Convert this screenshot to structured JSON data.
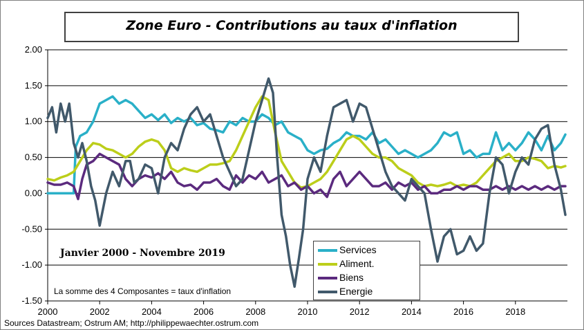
{
  "title": "Zone Euro - Contributions au taux d'inflation",
  "period": "Janvier 2000 - Novembre 2019",
  "note": "La somme des 4 Composantes = taux d'inflation",
  "source": "Sources Datastream; Ostrum AM; http://philippewaechter.ostrum.com",
  "chart_data": {
    "type": "line",
    "title": "Zone Euro - Contributions au taux d'inflation",
    "xlim": [
      2000,
      2020
    ],
    "ylim": [
      -1.5,
      2.0
    ],
    "x_ticks": [
      "2000",
      "2002",
      "2004",
      "2006",
      "2008",
      "2010",
      "2012",
      "2014",
      "2016",
      "2018"
    ],
    "y_ticks": [
      "2.00",
      "1.50",
      "1.00",
      "0.50",
      "0.00",
      "-0.50",
      "-1.00",
      "-1.50"
    ],
    "grid": "horizontal",
    "legend_position": "bottom-center",
    "series": [
      {
        "name": "Services",
        "color": "#2ab0c8",
        "x": [
          2000.0,
          2000.5,
          2001.0,
          2001.08,
          2001.25,
          2001.5,
          2001.75,
          2002.0,
          2002.25,
          2002.5,
          2002.75,
          2003.0,
          2003.25,
          2003.5,
          2003.75,
          2004.0,
          2004.25,
          2004.5,
          2004.75,
          2005.0,
          2005.25,
          2005.5,
          2005.75,
          2006.0,
          2006.25,
          2006.5,
          2006.75,
          2007.0,
          2007.25,
          2007.5,
          2007.75,
          2008.0,
          2008.25,
          2008.5,
          2008.75,
          2009.0,
          2009.25,
          2009.5,
          2009.75,
          2010.0,
          2010.25,
          2010.5,
          2010.75,
          2011.0,
          2011.25,
          2011.5,
          2011.75,
          2012.0,
          2012.25,
          2012.5,
          2012.75,
          2013.0,
          2013.25,
          2013.5,
          2013.75,
          2014.0,
          2014.25,
          2014.5,
          2014.75,
          2015.0,
          2015.25,
          2015.5,
          2015.75,
          2016.0,
          2016.25,
          2016.5,
          2016.75,
          2017.0,
          2017.25,
          2017.5,
          2017.75,
          2018.0,
          2018.25,
          2018.5,
          2018.75,
          2019.0,
          2019.25,
          2019.5,
          2019.75,
          2019.92
        ],
        "values": [
          0.0,
          0.0,
          0.0,
          0.65,
          0.8,
          0.85,
          1.0,
          1.25,
          1.3,
          1.35,
          1.25,
          1.3,
          1.25,
          1.15,
          1.05,
          1.1,
          1.02,
          1.1,
          0.98,
          1.05,
          1.0,
          1.05,
          0.95,
          0.98,
          0.9,
          0.88,
          0.85,
          1.0,
          0.95,
          1.05,
          1.0,
          1.0,
          1.1,
          1.05,
          0.95,
          1.0,
          0.85,
          0.8,
          0.75,
          0.6,
          0.55,
          0.6,
          0.62,
          0.7,
          0.75,
          0.85,
          0.8,
          0.8,
          0.75,
          0.85,
          0.7,
          0.75,
          0.65,
          0.55,
          0.6,
          0.55,
          0.5,
          0.55,
          0.6,
          0.7,
          0.85,
          0.8,
          0.85,
          0.55,
          0.6,
          0.5,
          0.55,
          0.55,
          0.85,
          0.6,
          0.7,
          0.6,
          0.7,
          0.85,
          0.75,
          0.6,
          0.8,
          0.6,
          0.7,
          0.82
        ]
      },
      {
        "name": "Aliment.",
        "color": "#bcce1a",
        "x": [
          2000.0,
          2000.25,
          2000.5,
          2000.75,
          2001.0,
          2001.25,
          2001.5,
          2001.75,
          2002.0,
          2002.25,
          2002.5,
          2002.75,
          2003.0,
          2003.25,
          2003.5,
          2003.75,
          2004.0,
          2004.25,
          2004.5,
          2004.75,
          2005.0,
          2005.25,
          2005.5,
          2005.75,
          2006.0,
          2006.25,
          2006.5,
          2006.75,
          2007.0,
          2007.25,
          2007.5,
          2007.75,
          2008.0,
          2008.25,
          2008.5,
          2008.75,
          2009.0,
          2009.25,
          2009.5,
          2009.75,
          2010.0,
          2010.25,
          2010.5,
          2010.75,
          2011.0,
          2011.25,
          2011.5,
          2011.75,
          2012.0,
          2012.25,
          2012.5,
          2012.75,
          2013.0,
          2013.25,
          2013.5,
          2013.75,
          2014.0,
          2014.25,
          2014.5,
          2014.75,
          2015.0,
          2015.25,
          2015.5,
          2015.75,
          2016.0,
          2016.25,
          2016.5,
          2016.75,
          2017.0,
          2017.25,
          2017.5,
          2017.75,
          2018.0,
          2018.25,
          2018.5,
          2018.75,
          2019.0,
          2019.25,
          2019.5,
          2019.75,
          2019.92
        ],
        "values": [
          0.2,
          0.18,
          0.22,
          0.25,
          0.3,
          0.45,
          0.6,
          0.7,
          0.68,
          0.62,
          0.6,
          0.55,
          0.5,
          0.55,
          0.65,
          0.72,
          0.75,
          0.72,
          0.6,
          0.35,
          0.3,
          0.35,
          0.32,
          0.3,
          0.35,
          0.4,
          0.4,
          0.42,
          0.45,
          0.6,
          0.8,
          1.0,
          1.2,
          1.35,
          1.3,
          0.85,
          0.45,
          0.3,
          0.15,
          0.08,
          0.1,
          0.15,
          0.2,
          0.3,
          0.45,
          0.6,
          0.75,
          0.8,
          0.75,
          0.65,
          0.55,
          0.5,
          0.5,
          0.45,
          0.35,
          0.3,
          0.25,
          0.15,
          0.1,
          0.12,
          0.1,
          0.12,
          0.15,
          0.1,
          0.12,
          0.1,
          0.15,
          0.25,
          0.35,
          0.45,
          0.5,
          0.55,
          0.45,
          0.45,
          0.5,
          0.48,
          0.45,
          0.35,
          0.38,
          0.36,
          0.38
        ]
      },
      {
        "name": "Biens",
        "color": "#5b2a7e",
        "x": [
          2000.0,
          2000.25,
          2000.5,
          2000.75,
          2001.0,
          2001.17,
          2001.33,
          2001.5,
          2001.75,
          2002.0,
          2002.25,
          2002.5,
          2002.75,
          2003.0,
          2003.25,
          2003.5,
          2003.75,
          2004.0,
          2004.25,
          2004.5,
          2004.75,
          2005.0,
          2005.25,
          2005.5,
          2005.75,
          2006.0,
          2006.25,
          2006.5,
          2006.75,
          2007.0,
          2007.25,
          2007.5,
          2007.75,
          2008.0,
          2008.25,
          2008.5,
          2008.75,
          2009.0,
          2009.25,
          2009.5,
          2009.75,
          2010.0,
          2010.25,
          2010.5,
          2010.75,
          2011.0,
          2011.25,
          2011.5,
          2011.75,
          2012.0,
          2012.25,
          2012.5,
          2012.75,
          2013.0,
          2013.25,
          2013.5,
          2013.75,
          2014.0,
          2014.25,
          2014.5,
          2014.75,
          2015.0,
          2015.25,
          2015.5,
          2015.75,
          2016.0,
          2016.25,
          2016.5,
          2016.75,
          2017.0,
          2017.25,
          2017.5,
          2017.75,
          2018.0,
          2018.25,
          2018.5,
          2018.75,
          2019.0,
          2019.25,
          2019.5,
          2019.75,
          2019.92
        ],
        "values": [
          0.15,
          0.12,
          0.12,
          0.15,
          0.1,
          -0.08,
          0.2,
          0.4,
          0.45,
          0.55,
          0.5,
          0.45,
          0.4,
          0.2,
          0.1,
          0.2,
          0.25,
          0.22,
          0.28,
          0.2,
          0.3,
          0.15,
          0.1,
          0.12,
          0.05,
          0.15,
          0.15,
          0.2,
          0.1,
          0.05,
          0.25,
          0.15,
          0.25,
          0.2,
          0.3,
          0.15,
          0.2,
          0.25,
          0.1,
          0.15,
          0.05,
          0.1,
          0.0,
          0.05,
          -0.05,
          0.2,
          0.3,
          0.1,
          0.2,
          0.3,
          0.2,
          0.1,
          0.1,
          0.15,
          0.05,
          0.15,
          0.1,
          0.15,
          0.05,
          0.1,
          0.0,
          0.0,
          0.05,
          0.05,
          0.1,
          0.05,
          0.1,
          0.1,
          0.05,
          0.05,
          0.1,
          0.05,
          0.1,
          0.05,
          0.1,
          0.05,
          0.1,
          0.05,
          0.1,
          0.05,
          0.1,
          0.1
        ]
      },
      {
        "name": "Energie",
        "color": "#41596b",
        "x": [
          2000.0,
          2000.17,
          2000.33,
          2000.5,
          2000.67,
          2000.83,
          2001.0,
          2001.17,
          2001.33,
          2001.5,
          2001.67,
          2001.83,
          2002.0,
          2002.25,
          2002.5,
          2002.75,
          2003.0,
          2003.17,
          2003.33,
          2003.5,
          2003.75,
          2004.0,
          2004.25,
          2004.5,
          2004.75,
          2005.0,
          2005.25,
          2005.5,
          2005.75,
          2006.0,
          2006.25,
          2006.5,
          2006.75,
          2007.0,
          2007.25,
          2007.5,
          2007.75,
          2008.0,
          2008.25,
          2008.5,
          2008.67,
          2008.83,
          2009.0,
          2009.17,
          2009.33,
          2009.5,
          2009.67,
          2009.83,
          2010.0,
          2010.25,
          2010.5,
          2010.75,
          2011.0,
          2011.25,
          2011.5,
          2011.75,
          2012.0,
          2012.25,
          2012.5,
          2012.75,
          2013.0,
          2013.25,
          2013.5,
          2013.75,
          2014.0,
          2014.25,
          2014.5,
          2014.75,
          2015.0,
          2015.25,
          2015.5,
          2015.75,
          2016.0,
          2016.25,
          2016.5,
          2016.75,
          2017.0,
          2017.25,
          2017.5,
          2017.75,
          2018.0,
          2018.25,
          2018.5,
          2018.75,
          2019.0,
          2019.25,
          2019.5,
          2019.75,
          2019.92
        ],
        "values": [
          1.05,
          1.2,
          0.85,
          1.25,
          1.0,
          1.25,
          0.7,
          0.5,
          0.7,
          0.45,
          0.1,
          -0.1,
          -0.45,
          0.0,
          0.3,
          0.1,
          0.45,
          0.45,
          0.15,
          0.2,
          0.4,
          0.35,
          0.0,
          0.5,
          0.7,
          0.6,
          0.9,
          1.1,
          1.2,
          1.0,
          1.1,
          0.8,
          0.5,
          0.3,
          0.1,
          0.2,
          0.6,
          1.0,
          1.3,
          1.6,
          1.4,
          0.5,
          -0.3,
          -0.6,
          -1.0,
          -1.3,
          -0.9,
          -0.5,
          0.2,
          0.5,
          0.3,
          0.8,
          1.2,
          1.25,
          1.3,
          1.0,
          1.25,
          1.2,
          0.9,
          0.6,
          0.3,
          0.1,
          0.0,
          -0.1,
          0.2,
          0.1,
          0.0,
          -0.5,
          -0.95,
          -0.6,
          -0.5,
          -0.85,
          -0.8,
          -0.6,
          -0.8,
          -0.7,
          0.0,
          0.5,
          0.4,
          0.0,
          0.3,
          0.5,
          0.4,
          0.75,
          0.9,
          0.95,
          0.4,
          0.05,
          -0.3
        ]
      }
    ]
  }
}
